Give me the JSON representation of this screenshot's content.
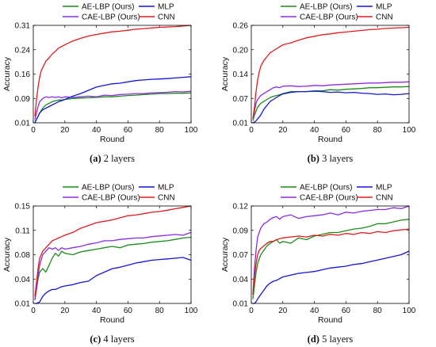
{
  "chart_data": [
    {
      "type": "line",
      "caption_letter": "(a)",
      "caption_text": " 2 layers",
      "xlabel": "Round",
      "ylabel": "Accuracy",
      "xlim": [
        0,
        100
      ],
      "ylim": [
        0.01,
        0.31
      ],
      "xticks": [
        "0",
        "20",
        "40",
        "60",
        "80",
        "100"
      ],
      "yticks": [
        "0.01",
        "0.09",
        "0.16",
        "0.24",
        "0.31"
      ],
      "legend": "top",
      "series": [
        {
          "name": "AE-LBP (Ours)",
          "color": "#1a8c1a",
          "x": [
            1,
            2,
            3,
            4,
            6,
            8,
            10,
            12,
            14,
            16,
            18,
            20,
            25,
            30,
            35,
            40,
            45,
            50,
            55,
            60,
            65,
            70,
            75,
            80,
            85,
            90,
            95,
            100
          ],
          "y": [
            0.015,
            0.02,
            0.03,
            0.04,
            0.055,
            0.065,
            0.07,
            0.075,
            0.078,
            0.08,
            0.08,
            0.082,
            0.085,
            0.086,
            0.087,
            0.088,
            0.09,
            0.09,
            0.092,
            0.094,
            0.095,
            0.097,
            0.098,
            0.1,
            0.1,
            0.101,
            0.101,
            0.102
          ]
        },
        {
          "name": "CAE-LBP (Ours)",
          "color": "#8c2be2",
          "x": [
            1,
            2,
            3,
            4,
            6,
            8,
            10,
            12,
            14,
            16,
            18,
            20,
            25,
            30,
            35,
            40,
            45,
            50,
            55,
            60,
            65,
            70,
            75,
            80,
            85,
            90,
            95,
            100
          ],
          "y": [
            0.02,
            0.04,
            0.06,
            0.075,
            0.085,
            0.09,
            0.088,
            0.09,
            0.088,
            0.09,
            0.087,
            0.09,
            0.088,
            0.09,
            0.092,
            0.09,
            0.095,
            0.094,
            0.097,
            0.098,
            0.1,
            0.1,
            0.102,
            0.103,
            0.104,
            0.106,
            0.105,
            0.107
          ]
        },
        {
          "name": "MLP",
          "color": "#1515d6",
          "x": [
            1,
            2,
            3,
            4,
            6,
            8,
            10,
            12,
            14,
            16,
            18,
            20,
            25,
            30,
            35,
            40,
            45,
            50,
            55,
            60,
            65,
            70,
            75,
            80,
            85,
            90,
            95,
            100
          ],
          "y": [
            0.01,
            0.02,
            0.03,
            0.04,
            0.05,
            0.055,
            0.06,
            0.065,
            0.07,
            0.075,
            0.078,
            0.082,
            0.092,
            0.1,
            0.11,
            0.12,
            0.125,
            0.13,
            0.132,
            0.136,
            0.14,
            0.142,
            0.144,
            0.145,
            0.146,
            0.148,
            0.15,
            0.152
          ]
        },
        {
          "name": "CNN",
          "color": "#e01b1b",
          "x": [
            1,
            2,
            3,
            4,
            5,
            6,
            8,
            10,
            12,
            14,
            16,
            18,
            20,
            25,
            30,
            35,
            40,
            45,
            50,
            55,
            60,
            65,
            70,
            75,
            80,
            85,
            90,
            95,
            100
          ],
          "y": [
            0.03,
            0.08,
            0.12,
            0.15,
            0.17,
            0.18,
            0.2,
            0.21,
            0.222,
            0.23,
            0.24,
            0.245,
            0.25,
            0.262,
            0.27,
            0.277,
            0.282,
            0.286,
            0.29,
            0.292,
            0.295,
            0.298,
            0.3,
            0.302,
            0.304,
            0.305,
            0.306,
            0.308,
            0.31
          ]
        }
      ]
    },
    {
      "type": "line",
      "caption_letter": "(b)",
      "caption_text": " 3 layers",
      "xlabel": "Round",
      "ylabel": "Accuracy",
      "xlim": [
        0,
        100
      ],
      "ylim": [
        0.01,
        0.26
      ],
      "xticks": [
        "0",
        "20",
        "40",
        "60",
        "80",
        "100"
      ],
      "yticks": [
        "0.01",
        "0.07",
        "0.14",
        "0.20",
        "0.26"
      ],
      "legend": "top",
      "series": [
        {
          "name": "AE-LBP (Ours)",
          "color": "#1a8c1a",
          "x": [
            1,
            2,
            3,
            4,
            6,
            8,
            10,
            12,
            14,
            16,
            18,
            20,
            25,
            30,
            35,
            40,
            45,
            50,
            55,
            60,
            65,
            70,
            75,
            80,
            85,
            90,
            95,
            100
          ],
          "y": [
            0.015,
            0.03,
            0.04,
            0.05,
            0.06,
            0.065,
            0.07,
            0.075,
            0.078,
            0.08,
            0.082,
            0.085,
            0.09,
            0.09,
            0.09,
            0.092,
            0.092,
            0.095,
            0.094,
            0.096,
            0.097,
            0.098,
            0.1,
            0.1,
            0.101,
            0.102,
            0.102,
            0.103
          ]
        },
        {
          "name": "CAE-LBP (Ours)",
          "color": "#8c2be2",
          "x": [
            1,
            2,
            3,
            4,
            6,
            8,
            10,
            12,
            14,
            16,
            18,
            20,
            25,
            30,
            35,
            40,
            45,
            50,
            55,
            60,
            65,
            70,
            75,
            80,
            85,
            90,
            95,
            100
          ],
          "y": [
            0.02,
            0.04,
            0.06,
            0.07,
            0.08,
            0.085,
            0.09,
            0.095,
            0.1,
            0.102,
            0.1,
            0.104,
            0.105,
            0.103,
            0.104,
            0.106,
            0.105,
            0.107,
            0.108,
            0.109,
            0.11,
            0.111,
            0.112,
            0.112,
            0.113,
            0.114,
            0.114,
            0.115
          ]
        },
        {
          "name": "MLP",
          "color": "#1515d6",
          "x": [
            1,
            2,
            3,
            4,
            6,
            8,
            10,
            12,
            14,
            16,
            18,
            20,
            25,
            30,
            35,
            40,
            45,
            50,
            55,
            60,
            65,
            70,
            75,
            80,
            85,
            90,
            95,
            100
          ],
          "y": [
            0.01,
            0.012,
            0.015,
            0.02,
            0.03,
            0.045,
            0.055,
            0.065,
            0.07,
            0.075,
            0.08,
            0.084,
            0.088,
            0.09,
            0.09,
            0.091,
            0.09,
            0.088,
            0.089,
            0.087,
            0.088,
            0.086,
            0.085,
            0.083,
            0.084,
            0.082,
            0.083,
            0.085
          ]
        },
        {
          "name": "CNN",
          "color": "#e01b1b",
          "x": [
            1,
            2,
            3,
            4,
            5,
            6,
            8,
            10,
            12,
            14,
            16,
            18,
            20,
            25,
            30,
            35,
            40,
            45,
            50,
            55,
            60,
            65,
            70,
            75,
            80,
            85,
            90,
            95,
            100
          ],
          "y": [
            0.02,
            0.05,
            0.09,
            0.12,
            0.14,
            0.155,
            0.17,
            0.18,
            0.19,
            0.195,
            0.2,
            0.205,
            0.21,
            0.215,
            0.222,
            0.228,
            0.232,
            0.236,
            0.238,
            0.241,
            0.243,
            0.245,
            0.247,
            0.249,
            0.25,
            0.252,
            0.253,
            0.254,
            0.255
          ]
        }
      ]
    },
    {
      "type": "line",
      "caption_letter": "(c)",
      "caption_text": " 4 layers",
      "xlabel": "Round",
      "ylabel": "Accuracy",
      "xlim": [
        0,
        100
      ],
      "ylim": [
        0.01,
        0.15
      ],
      "xticks": [
        "0",
        "20",
        "40",
        "60",
        "80",
        "100"
      ],
      "yticks": [
        "0.01",
        "0.04",
        "0.08",
        "0.11",
        "0.15"
      ],
      "legend": "top",
      "series": [
        {
          "name": "AE-LBP (Ours)",
          "color": "#1a8c1a",
          "x": [
            1,
            2,
            3,
            4,
            6,
            8,
            10,
            12,
            14,
            16,
            18,
            20,
            25,
            30,
            35,
            40,
            45,
            50,
            55,
            60,
            65,
            70,
            75,
            80,
            85,
            90,
            95,
            100
          ],
          "y": [
            0.015,
            0.03,
            0.045,
            0.055,
            0.06,
            0.055,
            0.065,
            0.075,
            0.082,
            0.078,
            0.085,
            0.082,
            0.08,
            0.084,
            0.086,
            0.088,
            0.09,
            0.092,
            0.09,
            0.094,
            0.095,
            0.096,
            0.098,
            0.099,
            0.1,
            0.102,
            0.104,
            0.105
          ]
        },
        {
          "name": "CAE-LBP (Ours)",
          "color": "#8c2be2",
          "x": [
            1,
            2,
            3,
            4,
            6,
            8,
            10,
            12,
            14,
            16,
            18,
            20,
            25,
            30,
            35,
            40,
            45,
            50,
            55,
            60,
            65,
            70,
            75,
            80,
            85,
            90,
            95,
            100
          ],
          "y": [
            0.015,
            0.03,
            0.05,
            0.065,
            0.08,
            0.085,
            0.09,
            0.088,
            0.09,
            0.086,
            0.09,
            0.088,
            0.09,
            0.092,
            0.095,
            0.097,
            0.1,
            0.1,
            0.102,
            0.103,
            0.104,
            0.104,
            0.106,
            0.107,
            0.108,
            0.109,
            0.108,
            0.112
          ]
        },
        {
          "name": "MLP",
          "color": "#1515d6",
          "x": [
            1,
            2,
            3,
            4,
            6,
            8,
            10,
            12,
            14,
            16,
            18,
            20,
            25,
            30,
            35,
            40,
            45,
            50,
            55,
            60,
            65,
            70,
            75,
            80,
            85,
            90,
            95,
            100
          ],
          "y": [
            0.01,
            0.01,
            0.011,
            0.012,
            0.02,
            0.025,
            0.028,
            0.03,
            0.03,
            0.032,
            0.034,
            0.035,
            0.037,
            0.04,
            0.042,
            0.05,
            0.055,
            0.06,
            0.062,
            0.065,
            0.068,
            0.07,
            0.072,
            0.073,
            0.074,
            0.075,
            0.076,
            0.072
          ]
        },
        {
          "name": "CNN",
          "color": "#e01b1b",
          "x": [
            1,
            2,
            3,
            4,
            5,
            6,
            8,
            10,
            12,
            14,
            16,
            18,
            20,
            25,
            30,
            35,
            40,
            45,
            50,
            55,
            60,
            65,
            70,
            75,
            80,
            85,
            90,
            95,
            100
          ],
          "y": [
            0.02,
            0.04,
            0.06,
            0.075,
            0.08,
            0.085,
            0.09,
            0.095,
            0.1,
            0.102,
            0.104,
            0.106,
            0.108,
            0.112,
            0.118,
            0.122,
            0.126,
            0.128,
            0.13,
            0.133,
            0.136,
            0.137,
            0.139,
            0.141,
            0.142,
            0.144,
            0.146,
            0.148,
            0.15
          ]
        }
      ]
    },
    {
      "type": "line",
      "caption_letter": "(d)",
      "caption_text": " 5 layers",
      "xlabel": "Round",
      "ylabel": "Accuracy",
      "xlim": [
        0,
        100
      ],
      "ylim": [
        0.01,
        0.12
      ],
      "xticks": [
        "0",
        "20",
        "40",
        "60",
        "80",
        "100"
      ],
      "yticks": [
        "0.01",
        "0.04",
        "0.07",
        "0.09",
        "0.12"
      ],
      "legend": "top",
      "series": [
        {
          "name": "AE-LBP (Ours)",
          "color": "#1a8c1a",
          "x": [
            1,
            2,
            3,
            4,
            6,
            8,
            10,
            12,
            14,
            16,
            18,
            20,
            25,
            30,
            35,
            40,
            45,
            50,
            55,
            60,
            65,
            70,
            75,
            80,
            85,
            90,
            95,
            100
          ],
          "y": [
            0.015,
            0.03,
            0.045,
            0.055,
            0.065,
            0.07,
            0.075,
            0.078,
            0.08,
            0.082,
            0.078,
            0.08,
            0.078,
            0.084,
            0.082,
            0.086,
            0.088,
            0.09,
            0.09,
            0.092,
            0.094,
            0.095,
            0.097,
            0.1,
            0.1,
            0.102,
            0.104,
            0.105
          ]
        },
        {
          "name": "CAE-LBP (Ours)",
          "color": "#8c2be2",
          "x": [
            1,
            2,
            3,
            4,
            6,
            8,
            10,
            12,
            14,
            16,
            18,
            20,
            25,
            30,
            35,
            40,
            45,
            50,
            55,
            60,
            65,
            70,
            75,
            80,
            85,
            90,
            95,
            100
          ],
          "y": [
            0.02,
            0.05,
            0.07,
            0.085,
            0.095,
            0.1,
            0.102,
            0.105,
            0.107,
            0.108,
            0.105,
            0.108,
            0.11,
            0.106,
            0.108,
            0.109,
            0.11,
            0.112,
            0.11,
            0.113,
            0.112,
            0.114,
            0.115,
            0.116,
            0.116,
            0.118,
            0.117,
            0.12
          ]
        },
        {
          "name": "MLP",
          "color": "#1515d6",
          "x": [
            1,
            2,
            3,
            4,
            6,
            8,
            10,
            12,
            14,
            16,
            18,
            20,
            25,
            30,
            35,
            40,
            45,
            50,
            55,
            60,
            65,
            70,
            75,
            80,
            85,
            90,
            95,
            100
          ],
          "y": [
            0.01,
            0.01,
            0.012,
            0.015,
            0.02,
            0.025,
            0.03,
            0.033,
            0.035,
            0.036,
            0.038,
            0.04,
            0.042,
            0.044,
            0.045,
            0.046,
            0.048,
            0.05,
            0.051,
            0.052,
            0.054,
            0.055,
            0.057,
            0.059,
            0.061,
            0.063,
            0.065,
            0.069
          ]
        },
        {
          "name": "CNN",
          "color": "#e01b1b",
          "x": [
            1,
            2,
            3,
            4,
            5,
            6,
            8,
            10,
            12,
            14,
            16,
            18,
            20,
            25,
            30,
            35,
            40,
            45,
            50,
            55,
            60,
            65,
            70,
            75,
            80,
            85,
            90,
            95,
            100
          ],
          "y": [
            0.02,
            0.04,
            0.055,
            0.065,
            0.07,
            0.072,
            0.075,
            0.078,
            0.08,
            0.08,
            0.082,
            0.083,
            0.084,
            0.085,
            0.086,
            0.085,
            0.087,
            0.086,
            0.088,
            0.087,
            0.089,
            0.088,
            0.09,
            0.089,
            0.091,
            0.09,
            0.092,
            0.093,
            0.094
          ]
        }
      ]
    }
  ]
}
